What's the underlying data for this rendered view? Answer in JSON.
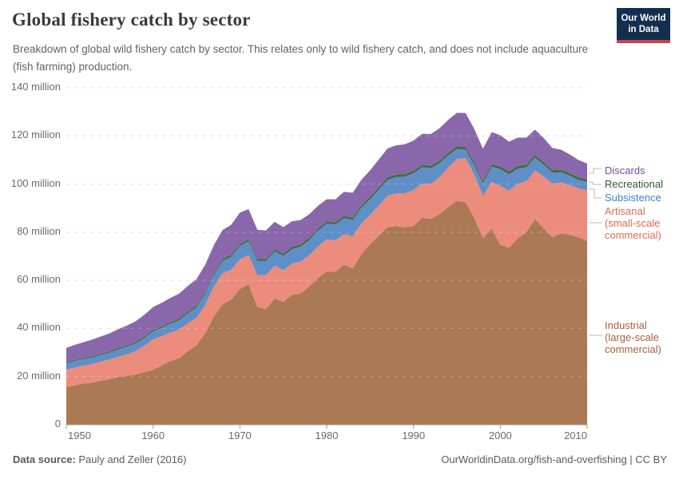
{
  "header": {
    "title": "Global fishery catch by sector",
    "subtitle": "Breakdown of global wild fishery catch by sector. This relates only to wild fishery catch, and does not include aquaculture (fish farming) production.",
    "logo": {
      "line1": "Our World",
      "line2": "in Data"
    }
  },
  "footer": {
    "source_label": "Data source:",
    "source_value": " Pauly and Zeller (2016)",
    "right": "OurWorldinData.org/fish-and-overfishing | CC BY"
  },
  "colors": {
    "logo_navy": "#12304e",
    "logo_red": "#d13f4c",
    "grid": "#dcdcdc",
    "axis": "#999999",
    "connector": "#b8b8b8"
  },
  "chart_data": {
    "type": "area",
    "stacked": true,
    "title": "Global fishery catch by sector",
    "xlabel": "",
    "ylabel": "",
    "ylim": [
      0,
      140
    ],
    "grid": "dashed",
    "legend_position": "right",
    "x": [
      1950,
      1951,
      1952,
      1953,
      1954,
      1955,
      1956,
      1957,
      1958,
      1959,
      1960,
      1961,
      1962,
      1963,
      1964,
      1965,
      1966,
      1967,
      1968,
      1969,
      1970,
      1971,
      1972,
      1973,
      1974,
      1975,
      1976,
      1977,
      1978,
      1979,
      1980,
      1981,
      1982,
      1983,
      1984,
      1985,
      1986,
      1987,
      1988,
      1989,
      1990,
      1991,
      1992,
      1993,
      1994,
      1995,
      1996,
      1997,
      1998,
      1999,
      2000,
      2001,
      2002,
      2003,
      2004,
      2005,
      2006,
      2007,
      2008,
      2009,
      2010
    ],
    "unit": "million tonnes",
    "series": [
      {
        "name": "Industrial (large-scale commercial)",
        "color": "#ab7a55",
        "values": [
          15.6,
          16.4,
          17.1,
          17.5,
          18.3,
          19.0,
          19.8,
          20.3,
          20.9,
          21.8,
          22.9,
          24.6,
          26.5,
          27.6,
          30.6,
          33.0,
          38.0,
          45.0,
          50.0,
          52.0,
          56.4,
          58.5,
          49.0,
          48.0,
          52.5,
          51.0,
          54.0,
          54.5,
          57.5,
          61.0,
          63.7,
          63.5,
          66.5,
          65.0,
          71.0,
          75.0,
          78.5,
          82.0,
          82.5,
          82.0,
          82.6,
          86.0,
          85.5,
          87.5,
          90.5,
          93.0,
          92.5,
          86.0,
          77.5,
          81.5,
          74.7,
          73.5,
          77.5,
          80.0,
          85.5,
          81.5,
          78.0,
          79.5,
          79.0,
          78.0,
          76.3
        ]
      },
      {
        "name": "Artisanal (small-scale commercial)",
        "color": "#ec8c7d",
        "values": [
          7.3,
          7.4,
          7.5,
          7.7,
          7.9,
          8.1,
          8.5,
          9.0,
          9.7,
          11.0,
          12.6,
          12.2,
          11.8,
          11.9,
          11.6,
          11.4,
          11.8,
          12.4,
          13.0,
          12.4,
          12.3,
          12.0,
          13.2,
          14.2,
          13.6,
          13.2,
          12.9,
          13.3,
          13.0,
          13.1,
          13.3,
          13.1,
          12.7,
          13.4,
          12.6,
          12.2,
          12.6,
          13.1,
          13.6,
          14.2,
          14.9,
          14.2,
          14.6,
          15.4,
          16.4,
          17.4,
          18.3,
          18.0,
          17.6,
          19.5,
          24.5,
          23.8,
          22.6,
          21.2,
          20.2,
          21.6,
          22.2,
          21.2,
          20.6,
          20.2,
          21.2
        ]
      },
      {
        "name": "Subsistence",
        "color": "#5f8fc8",
        "values": [
          2.6,
          2.7,
          2.7,
          2.8,
          2.8,
          2.9,
          3.0,
          3.1,
          3.1,
          3.2,
          3.3,
          3.5,
          3.7,
          3.9,
          4.1,
          4.4,
          4.7,
          4.9,
          5.1,
          5.4,
          5.6,
          5.7,
          5.8,
          5.9,
          6.0,
          6.0,
          6.1,
          6.2,
          6.3,
          6.5,
          6.6,
          6.6,
          6.7,
          6.7,
          6.6,
          6.5,
          6.6,
          6.7,
          6.8,
          6.9,
          7.0,
          6.8,
          6.5,
          5.8,
          5.0,
          4.2,
          3.5,
          4.0,
          5.0,
          6.2,
          7.0,
          6.8,
          6.3,
          5.8,
          5.3,
          5.0,
          4.6,
          4.2,
          3.9,
          3.6,
          3.4
        ]
      },
      {
        "name": "Recreational",
        "color": "#3f6c3b",
        "values": [
          0.4,
          0.4,
          0.4,
          0.5,
          0.5,
          0.5,
          0.5,
          0.5,
          0.6,
          0.6,
          0.6,
          0.6,
          0.6,
          0.7,
          0.7,
          0.7,
          0.7,
          0.7,
          0.8,
          0.8,
          0.8,
          0.8,
          0.8,
          0.8,
          0.8,
          0.9,
          0.9,
          0.9,
          0.9,
          0.9,
          0.9,
          0.9,
          0.9,
          0.9,
          0.9,
          1.0,
          1.0,
          1.0,
          1.0,
          1.0,
          1.0,
          1.0,
          1.0,
          1.0,
          1.0,
          1.0,
          1.0,
          1.0,
          1.0,
          1.1,
          1.1,
          1.1,
          1.1,
          1.1,
          1.0,
          1.0,
          1.0,
          1.0,
          1.0,
          1.0,
          1.0
        ]
      },
      {
        "name": "Discards",
        "color": "#8a67ab",
        "values": [
          6.0,
          6.3,
          6.6,
          6.9,
          7.2,
          7.5,
          7.9,
          8.3,
          8.7,
          9.1,
          9.5,
          9.8,
          10.1,
          10.4,
          10.7,
          11.0,
          11.3,
          11.6,
          12.0,
          12.5,
          13.0,
          12.6,
          12.2,
          11.8,
          11.4,
          11.0,
          10.6,
          10.2,
          9.8,
          9.5,
          9.2,
          9.6,
          10.0,
          10.4,
          10.7,
          11.0,
          11.5,
          12.0,
          12.2,
          12.4,
          12.6,
          12.9,
          13.2,
          13.5,
          13.8,
          14.0,
          14.2,
          13.9,
          13.6,
          13.3,
          13.0,
          12.4,
          11.8,
          11.2,
          10.6,
          10.0,
          9.2,
          8.4,
          7.8,
          7.2,
          6.6
        ]
      }
    ],
    "yticks": [
      {
        "value": 140,
        "label": "140 million"
      },
      {
        "value": 120,
        "label": "120 million"
      },
      {
        "value": 100,
        "label": "100 million"
      },
      {
        "value": 80,
        "label": "80 million"
      },
      {
        "value": 60,
        "label": "60 million"
      },
      {
        "value": 40,
        "label": "40 million"
      },
      {
        "value": 20,
        "label": "20 million"
      },
      {
        "value": 0,
        "label": "0"
      }
    ],
    "xticks": [
      {
        "year": 1950,
        "label": "1950"
      },
      {
        "year": 1960,
        "label": "1960"
      },
      {
        "year": 1970,
        "label": "1970"
      },
      {
        "year": 1980,
        "label": "1980"
      },
      {
        "year": 1990,
        "label": "1990"
      },
      {
        "year": 2000,
        "label": "2000"
      },
      {
        "year": 2010,
        "label": "2010"
      }
    ],
    "legend": [
      {
        "id": "discards",
        "color": "#7052a3",
        "lines": [
          "Discards"
        ]
      },
      {
        "id": "recreational",
        "color": "#2b5c2e",
        "lines": [
          "Recreational"
        ]
      },
      {
        "id": "subsistence",
        "color": "#3e7dc9",
        "lines": [
          "Subsistence"
        ]
      },
      {
        "id": "artisanal",
        "color": "#e0694f",
        "lines": [
          "Artisanal",
          "(small-scale",
          "commercial)"
        ]
      },
      {
        "id": "industrial",
        "color": "#a5603b",
        "lines": [
          "Industrial",
          "(large-scale",
          "commercial)"
        ]
      }
    ]
  }
}
